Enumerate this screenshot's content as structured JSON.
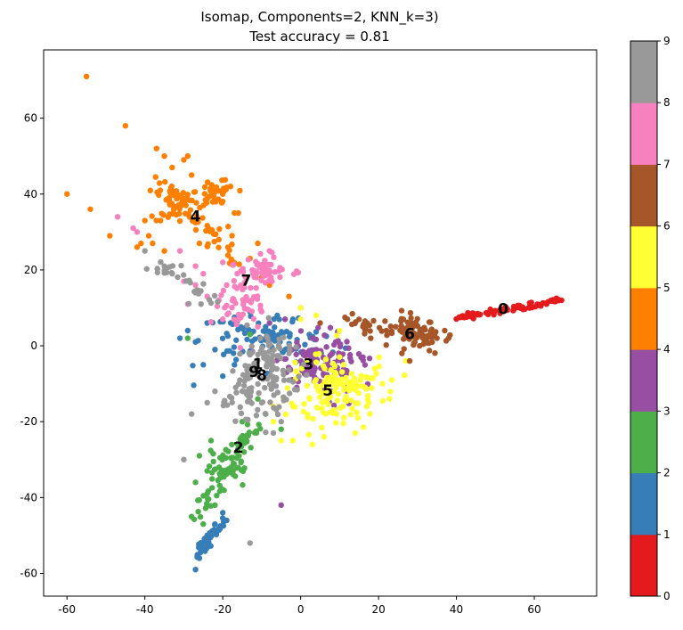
{
  "chart_data": {
    "type": "scatter",
    "title": [
      "Isomap, Components=2, KNN_k=3)",
      "Test accuracy = 0.81"
    ],
    "xlabel": "",
    "ylabel": "",
    "xlim": [
      -66,
      76
    ],
    "ylim": [
      -66,
      78
    ],
    "xticks": [
      -60,
      -40,
      -20,
      0,
      20,
      40,
      60
    ],
    "yticks": [
      -60,
      -40,
      -20,
      0,
      20,
      40,
      60
    ],
    "grid": false,
    "marker_size": 5,
    "colorbar": {
      "ticks": [
        0,
        1,
        2,
        3,
        4,
        5,
        6,
        7,
        8,
        9
      ],
      "range": [
        0,
        9
      ],
      "colormap": "Set1",
      "colors": [
        "#e41a1c",
        "#377eb8",
        "#4daf4a",
        "#984ea3",
        "#ff7f00",
        "#ffff33",
        "#a65628",
        "#f781bf",
        "#999999"
      ]
    },
    "series": [
      {
        "label": "0",
        "color": "#e41a1c",
        "clusters": [
          {
            "from": [
              40,
              7.2
            ],
            "to": [
              67,
              12
            ],
            "n": 80,
            "spread": [
              0.6,
              0.4
            ]
          }
        ],
        "points": [
          [
            52,
            9.3
          ],
          [
            57,
            10.2
          ],
          [
            63,
            11.2
          ],
          [
            67,
            12
          ]
        ],
        "centroid": [
          52,
          9.5
        ]
      },
      {
        "label": "1",
        "color": "#377eb8",
        "clusters": [
          {
            "center": [
              -5,
              2
            ],
            "n": 70,
            "spread": [
              6,
              3
            ]
          },
          {
            "center": [
              -18,
              1
            ],
            "n": 25,
            "spread": [
              5,
              4
            ]
          },
          {
            "from": [
              -27,
              -57
            ],
            "to": [
              -20,
              -45
            ],
            "n": 40,
            "spread": [
              0.8,
              0.8
            ]
          }
        ],
        "points": [
          [
            -27,
            -59
          ],
          [
            -26,
            -56
          ],
          [
            -25,
            -52
          ],
          [
            -24,
            -50
          ],
          [
            -22,
            -47
          ],
          [
            -20,
            -44
          ],
          [
            -29,
            4
          ],
          [
            -24,
            6
          ],
          [
            -25,
            -5
          ],
          [
            -20,
            -8
          ],
          [
            -17,
            -5
          ],
          [
            -27,
            1
          ],
          [
            -13,
            9
          ],
          [
            -9,
            5
          ],
          [
            -6,
            8
          ],
          [
            -2,
            7
          ],
          [
            -31,
            2
          ],
          [
            -22,
            -1
          ]
        ],
        "centroid": [
          -11,
          -5
        ]
      },
      {
        "label": "2",
        "color": "#4daf4a",
        "clusters": [
          {
            "from": [
              -27,
              -46
            ],
            "to": [
              -12,
              -21
            ],
            "n": 60,
            "spread": [
              1.3,
              1.3
            ]
          },
          {
            "center": [
              -19,
              -32
            ],
            "n": 35,
            "spread": [
              2.5,
              2.5
            ]
          }
        ],
        "points": [
          [
            -29,
            2
          ],
          [
            -26,
            -29
          ],
          [
            -23,
            -25
          ],
          [
            -24,
            -33
          ],
          [
            -27,
            -36
          ],
          [
            -22,
            -42
          ],
          [
            -24,
            -39
          ],
          [
            -25,
            -47
          ],
          [
            -9,
            -18
          ],
          [
            -13,
            3
          ],
          [
            -5,
            -22
          ],
          [
            -15,
            -20
          ],
          [
            -11,
            -14
          ]
        ],
        "centroid": [
          -16,
          -27
        ]
      },
      {
        "label": "3",
        "color": "#984ea3",
        "clusters": [
          {
            "center": [
              5,
              -4
            ],
            "n": 130,
            "spread": [
              5,
              3.5
            ]
          }
        ],
        "points": [
          [
            -5,
            -42
          ],
          [
            16,
            -3
          ],
          [
            -4,
            7
          ],
          [
            0,
            10
          ],
          [
            -8,
            6
          ],
          [
            9,
            1
          ],
          [
            -1,
            -11
          ],
          [
            12,
            -10
          ],
          [
            8,
            -12
          ],
          [
            3,
            2
          ]
        ],
        "centroid": [
          2,
          -5
        ]
      },
      {
        "label": "4",
        "color": "#ff7f00",
        "clusters": [
          {
            "from": [
              -36,
              43
            ],
            "to": [
              -17,
              23
            ],
            "n": 60,
            "spread": [
              1.8,
              1.8
            ]
          },
          {
            "center": [
              -32,
              38
            ],
            "n": 35,
            "spread": [
              2.5,
              2.5
            ]
          },
          {
            "center": [
              -22,
              41
            ],
            "n": 30,
            "spread": [
              2,
              2
            ]
          }
        ],
        "points": [
          [
            -55,
            71
          ],
          [
            -45,
            58
          ],
          [
            -60,
            40
          ],
          [
            -54,
            36
          ],
          [
            -49,
            29
          ],
          [
            -37,
            52
          ],
          [
            -35,
            50
          ],
          [
            -33,
            47
          ],
          [
            -29,
            50
          ],
          [
            -28,
            45
          ],
          [
            -30,
            49
          ],
          [
            -20,
            40
          ],
          [
            -18,
            42
          ],
          [
            -17,
            35
          ],
          [
            -16,
            35
          ],
          [
            -36,
            33
          ],
          [
            -39,
            29
          ],
          [
            -41,
            27
          ],
          [
            -38,
            27
          ],
          [
            -42,
            26
          ],
          [
            -35,
            25
          ],
          [
            -40,
            33
          ],
          [
            -11,
            27
          ],
          [
            -10,
            18
          ],
          [
            -8,
            16
          ],
          [
            -3,
            13
          ],
          [
            -21,
            28
          ],
          [
            -26,
            27
          ],
          [
            -13,
            23
          ]
        ],
        "centroid": [
          -27,
          34
        ]
      },
      {
        "label": "5",
        "color": "#ffff33",
        "clusters": [
          {
            "center": [
              9,
              -12
            ],
            "n": 140,
            "spread": [
              6,
              5
            ]
          }
        ],
        "points": [
          [
            -2,
            -25
          ],
          [
            3,
            -26
          ],
          [
            -5,
            -25
          ],
          [
            27,
            -4
          ],
          [
            21,
            -10
          ],
          [
            17,
            -16
          ],
          [
            14,
            -23
          ],
          [
            0,
            10
          ],
          [
            0,
            7
          ],
          [
            4,
            8
          ],
          [
            -7,
            -20
          ],
          [
            10,
            4
          ],
          [
            19,
            -6
          ],
          [
            6,
            -24
          ]
        ],
        "centroid": [
          7,
          -12
        ]
      },
      {
        "label": "6",
        "color": "#a65628",
        "clusters": [
          {
            "center": [
              30,
              3
            ],
            "n": 60,
            "spread": [
              3,
              2.5
            ]
          },
          {
            "from": [
              12,
              6.5
            ],
            "to": [
              37,
              1.5
            ],
            "n": 45,
            "spread": [
              1.3,
              1.2
            ]
          }
        ],
        "points": [
          [
            5,
            6
          ],
          [
            12,
            7
          ],
          [
            38,
            2
          ],
          [
            37,
            4
          ],
          [
            35,
            2
          ],
          [
            22,
            4
          ],
          [
            18,
            2
          ],
          [
            26,
            -2
          ],
          [
            28,
            -4
          ]
        ],
        "centroid": [
          28,
          3
        ]
      },
      {
        "label": "7",
        "color": "#f781bf",
        "clusters": [
          {
            "center": [
              -9,
              20
            ],
            "n": 50,
            "spread": [
              3.5,
              1.8
            ]
          },
          {
            "center": [
              -15,
              12
            ],
            "n": 50,
            "spread": [
              3,
              4
            ]
          }
        ],
        "points": [
          [
            -47,
            34
          ],
          [
            -43,
            31
          ],
          [
            -42,
            30
          ],
          [
            -31,
            25
          ],
          [
            -27,
            21
          ],
          [
            -25,
            19
          ],
          [
            -30,
            17
          ],
          [
            -27,
            16
          ],
          [
            -24,
            13
          ],
          [
            -20,
            22
          ],
          [
            -19,
            16
          ],
          [
            -21,
            12
          ],
          [
            -29,
            11
          ],
          [
            -10,
            9
          ],
          [
            -8,
            25
          ],
          [
            -11,
            5
          ],
          [
            -20,
            7
          ]
        ],
        "centroid": [
          -14,
          17
        ]
      },
      {
        "label": "8",
        "color": "#999999",
        "clusters": [
          {
            "center": [
              -9,
              -9
            ],
            "n": 100,
            "spread": [
              4,
              5
            ]
          },
          {
            "from": [
              -20,
              -17
            ],
            "to": [
              -5,
              2
            ],
            "n": 40,
            "spread": [
              1.8,
              1.8
            ]
          },
          {
            "from": [
              -38,
              22
            ],
            "to": [
              -22,
              12
            ],
            "n": 30,
            "spread": [
              1.3,
              1.3
            ]
          }
        ],
        "points": [
          [
            -13,
            -52
          ],
          [
            -30,
            -30
          ],
          [
            -22,
            -12
          ],
          [
            -24,
            -15
          ],
          [
            -28,
            -18
          ],
          [
            -10,
            -15
          ],
          [
            -7,
            -23
          ],
          [
            -40,
            25
          ],
          [
            -35,
            21
          ],
          [
            -33,
            19
          ],
          [
            -27,
            14
          ],
          [
            -5,
            -20
          ],
          [
            -15,
            -12
          ],
          [
            -3,
            -2
          ]
        ],
        "centroid": [
          -10,
          -8
        ]
      }
    ],
    "centroid_labels": [
      {
        "text": "0",
        "x": 52,
        "y": 9.5
      },
      {
        "text": "1",
        "x": -11,
        "y": -5
      },
      {
        "text": "2",
        "x": -16,
        "y": -27
      },
      {
        "text": "3",
        "x": 2,
        "y": -5
      },
      {
        "text": "4",
        "x": -27,
        "y": 34
      },
      {
        "text": "5",
        "x": 7,
        "y": -12
      },
      {
        "text": "6",
        "x": 28,
        "y": 3
      },
      {
        "text": "7",
        "x": -14,
        "y": 17
      },
      {
        "text": "8",
        "x": -10,
        "y": -8
      },
      {
        "text": "9",
        "x": -12,
        "y": -7
      }
    ]
  }
}
